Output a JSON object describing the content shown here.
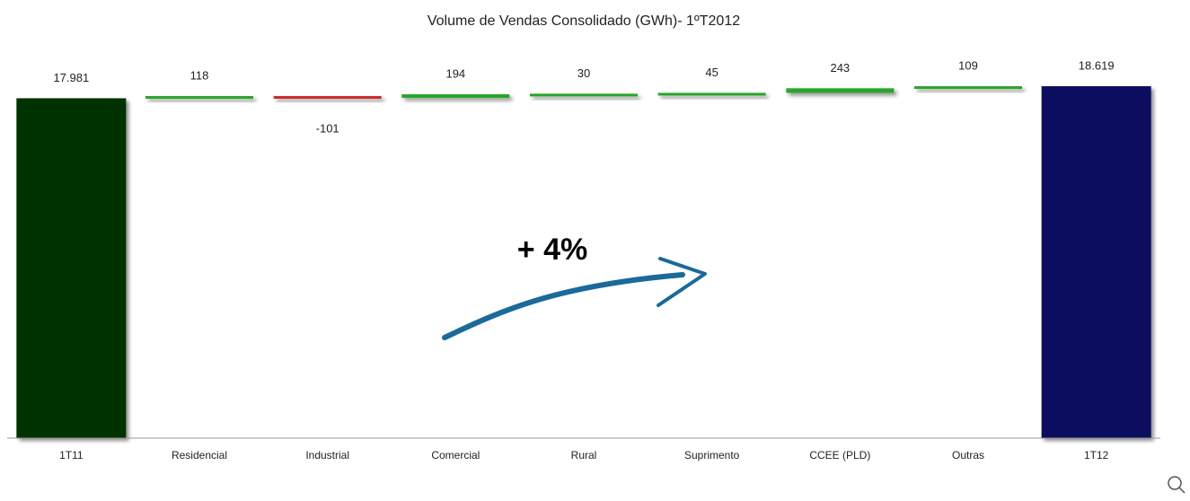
{
  "chart_data": {
    "type": "waterfall",
    "title": "Volume de Vendas Consolidado (GWh)- 1ºT2012",
    "categories": [
      "1T11",
      "Residencial",
      "Industrial",
      "Comercial",
      "Rural",
      "Suprimento",
      "CCEE (PLD)",
      "Outras",
      "1T12"
    ],
    "values": [
      17981,
      118,
      -101,
      194,
      30,
      45,
      243,
      109,
      18619
    ],
    "value_labels": [
      "17.981",
      "118",
      "-101",
      "194",
      "30",
      "45",
      "243",
      "109",
      "18.619"
    ],
    "measure": [
      "absolute",
      "relative",
      "relative",
      "relative",
      "relative",
      "relative",
      "relative",
      "relative",
      "total"
    ],
    "colors": [
      "#003300",
      "#2aa52a",
      "#cc2a2a",
      "#2aa52a",
      "#2aa52a",
      "#2aa52a",
      "#2aa52a",
      "#2aa52a",
      "#0b0b5e"
    ],
    "ylim": [
      0,
      19000
    ],
    "annotation": "+ 4%"
  }
}
